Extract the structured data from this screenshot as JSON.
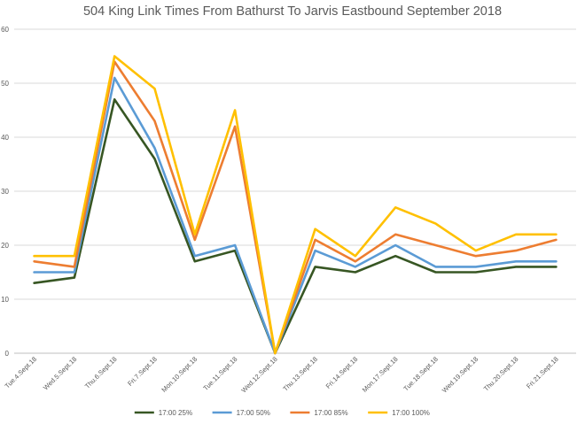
{
  "chart_data": {
    "type": "line",
    "title": "504 King Link Times From Bathurst To Jarvis Eastbound September 2018",
    "xlabel": "",
    "ylabel": "",
    "ylim": [
      0,
      60
    ],
    "yticks": [
      0,
      10,
      20,
      30,
      40,
      50,
      60
    ],
    "grid": true,
    "legend_position": "bottom",
    "categories": [
      "Tue.4.Sept.18",
      "Wed.5.Sept.18",
      "Thu.6.Sept.18",
      "Fri.7.Sept.18",
      "Mon.10.Sept.18",
      "Tue.11.Sept.18",
      "Wed.12.Sept.18",
      "Thu.13.Sept.18",
      "Fri.14.Sept.18",
      "Mon.17.Sept.18",
      "Tue.18.Sept.18",
      "Wed.19.Sept.18",
      "Thu.20.Sept.18",
      "Fri.21.Sept.18"
    ],
    "series": [
      {
        "name": "17:00 25%",
        "color": "#375623",
        "values": [
          13,
          14,
          47,
          36,
          17,
          19,
          0,
          16,
          15,
          18,
          15,
          15,
          16,
          16
        ]
      },
      {
        "name": "17:00 50%",
        "color": "#5B9BD5",
        "values": [
          15,
          15,
          51,
          38,
          18,
          20,
          0,
          19,
          16,
          20,
          16,
          16,
          17,
          17
        ]
      },
      {
        "name": "17:00 85%",
        "color": "#ED7D31",
        "values": [
          17,
          16,
          54,
          43,
          21,
          42,
          0,
          21,
          17,
          22,
          20,
          18,
          19,
          21
        ]
      },
      {
        "name": "17:00 100%",
        "color": "#FFC000",
        "values": [
          18,
          18,
          55,
          49,
          22,
          45,
          0,
          23,
          18,
          27,
          24,
          19,
          22,
          22
        ]
      }
    ]
  }
}
